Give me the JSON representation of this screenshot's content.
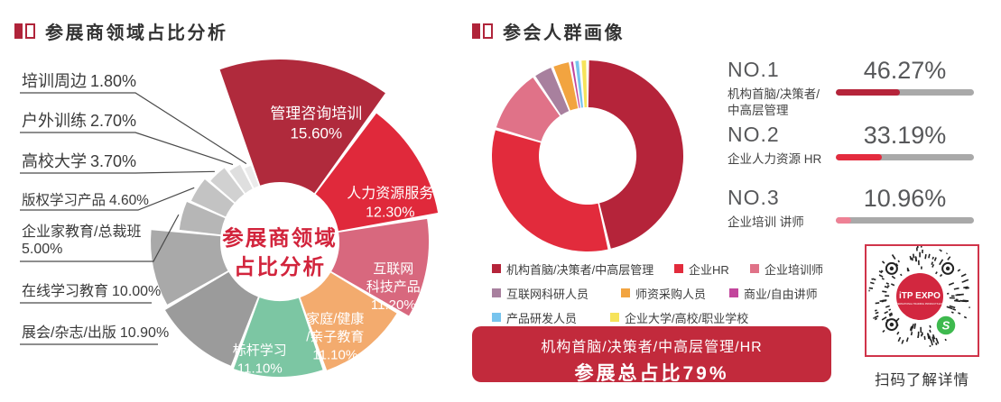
{
  "theme": {
    "accent_dark": "#b0243a",
    "accent_red": "#d2243c",
    "bar_track": "#a9a9a9",
    "banner_bg": "#c22a3c",
    "qr_border": "#d0344a",
    "qr_green": "#3eb94e",
    "qr_logo_red": "#d2273f",
    "leader_line": "#4a4a4a"
  },
  "chart_data": [
    {
      "type": "pie",
      "variant": "variable-radius-donut",
      "title": "参展商领域占比分析",
      "center_label": [
        "参展商领域",
        "占比分析"
      ],
      "legend_position": "none",
      "segments": [
        {
          "label": "管理咨询培训",
          "value": 15.6,
          "display": "15.60%",
          "color": "#b02a3c",
          "label_placement": "inside"
        },
        {
          "label": "人力资源服务",
          "value": 12.3,
          "display": "12.30%",
          "color": "#e0293b",
          "label_placement": "inside"
        },
        {
          "label": "互联网科技产品",
          "value": 11.2,
          "display": "11.20%",
          "color": "#d8687e",
          "label_placement": "inside",
          "label_lines": [
            "互联网",
            "科技产品"
          ]
        },
        {
          "label": "家庭/健康/亲子教育",
          "value": 11.1,
          "display": "11.10%",
          "color": "#f3ab6e",
          "label_placement": "inside",
          "label_lines": [
            "家庭/健康",
            "/亲子教育"
          ]
        },
        {
          "label": "标杆学习",
          "value": 11.1,
          "display": "11.10%",
          "color": "#7cc6a3",
          "label_placement": "inside"
        },
        {
          "label": "展会/杂志/出版",
          "value": 10.9,
          "display": "10.90%",
          "color": "#9b9b9b",
          "label_placement": "callout"
        },
        {
          "label": "在线学习教育",
          "value": 10.0,
          "display": "10.00%",
          "color": "#a9a9a9",
          "label_placement": "callout"
        },
        {
          "label": "企业家教育/总裁班",
          "value": 5.0,
          "display": "5.00%",
          "color": "#b6b6b6",
          "label_placement": "callout"
        },
        {
          "label": "版权学习产品",
          "value": 4.6,
          "display": "4.60%",
          "color": "#c3c3c3",
          "label_placement": "callout"
        },
        {
          "label": "高校大学",
          "value": 3.7,
          "display": "3.70%",
          "color": "#d1d1d1",
          "label_placement": "callout"
        },
        {
          "label": "户外训练",
          "value": 2.7,
          "display": "2.70%",
          "color": "#dfdfdf",
          "label_placement": "callout"
        },
        {
          "label": "培训周边",
          "value": 1.8,
          "display": "1.80%",
          "color": "#ebebeb",
          "label_placement": "callout"
        }
      ]
    },
    {
      "type": "pie",
      "variant": "donut",
      "title": "参会人群画像",
      "legend_position": "bottom",
      "segments": [
        {
          "label": "机构首脑/决策者/中高层管理",
          "value": 46.27,
          "color": "#b5243a"
        },
        {
          "label": "企业HR",
          "value": 33.19,
          "color": "#e22b3c"
        },
        {
          "label": "企业培训师",
          "value": 10.96,
          "color": "#e07288"
        },
        {
          "label": "互联网科研人员",
          "value": 3.4,
          "estimated": true,
          "color": "#a8809e"
        },
        {
          "label": "师资采购人员",
          "value": 3.1,
          "estimated": true,
          "color": "#f2a440"
        },
        {
          "label": "商业/自由讲师",
          "value": 0.62,
          "estimated": true,
          "color": "#c2469c"
        },
        {
          "label": "产品研发人员",
          "value": 1.05,
          "estimated": true,
          "color": "#77c4ee"
        },
        {
          "label": "企业大学/高校/职业学校",
          "value": 1.25,
          "estimated": true,
          "color": "#f6e35a"
        }
      ]
    }
  ],
  "right_section": {
    "rankings": [
      {
        "rank": "NO.1",
        "label": "机构首脑/决策者/\n中高层管理",
        "value": "46.27%",
        "pct": 46.27,
        "bar_color": "#b5243a"
      },
      {
        "rank": "NO.2",
        "label": "企业人力资源 HR",
        "value": "33.19%",
        "pct": 33.19,
        "bar_color": "#e42b3e"
      },
      {
        "rank": "NO.3",
        "label": "企业培训 讲师",
        "value": "10.96%",
        "pct": 10.96,
        "bar_color": "#ee8195"
      }
    ],
    "banner": {
      "line1": "机构首脑/决策者/中高层管理/HR",
      "line2": "参展总占比79%"
    },
    "qr": {
      "caption": "扫码了解详情",
      "logo_text": "iTP EXPO",
      "logo_subtext": "INTERNATIONAL TRAINING PRODUCTS EXPO"
    }
  }
}
